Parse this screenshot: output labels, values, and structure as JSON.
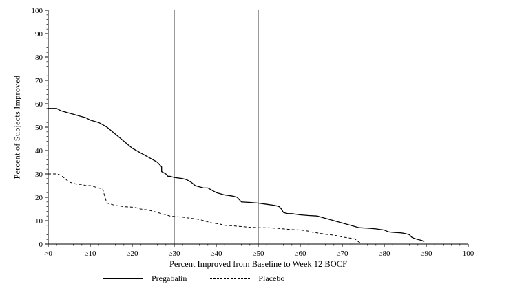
{
  "chart_data": {
    "type": "line",
    "title": "",
    "xlabel": "Percent Improved from Baseline to Week 12 BOCF",
    "ylabel": "Percent of Subjects Improved",
    "xlim": [
      0,
      100
    ],
    "ylim": [
      0,
      100
    ],
    "grid": false,
    "legend_position": "bottom",
    "reference_lines_x": [
      30,
      50
    ],
    "x_ticks": [
      {
        "value": 0,
        "label": ">0"
      },
      {
        "value": 10,
        "label": "≥10"
      },
      {
        "value": 20,
        "label": "≥20"
      },
      {
        "value": 30,
        "label": "≥30"
      },
      {
        "value": 40,
        "label": "≥40"
      },
      {
        "value": 50,
        "label": "≥50"
      },
      {
        "value": 60,
        "label": "≥60"
      },
      {
        "value": 70,
        "label": "≥70"
      },
      {
        "value": 80,
        "label": "≥80"
      },
      {
        "value": 90,
        "label": "≥90"
      },
      {
        "value": 100,
        "label": "100"
      }
    ],
    "y_ticks": [
      0,
      10,
      20,
      30,
      40,
      50,
      60,
      70,
      80,
      90,
      100
    ],
    "series": [
      {
        "name": "Pregabalin",
        "style": "solid",
        "color": "#000000",
        "points": [
          [
            0,
            58
          ],
          [
            2,
            58
          ],
          [
            3,
            57
          ],
          [
            4,
            56.5
          ],
          [
            5,
            56
          ],
          [
            6,
            55.5
          ],
          [
            7,
            55
          ],
          [
            8,
            54.5
          ],
          [
            9,
            54
          ],
          [
            10,
            53
          ],
          [
            11,
            52.5
          ],
          [
            12,
            52
          ],
          [
            13,
            51
          ],
          [
            14,
            50
          ],
          [
            15,
            48.5
          ],
          [
            16,
            47
          ],
          [
            17,
            45.5
          ],
          [
            18,
            44
          ],
          [
            19,
            42.5
          ],
          [
            20,
            41
          ],
          [
            21,
            40
          ],
          [
            22,
            39
          ],
          [
            23,
            38
          ],
          [
            24,
            37
          ],
          [
            25,
            36
          ],
          [
            26,
            35
          ],
          [
            26.5,
            34
          ],
          [
            27,
            33
          ],
          [
            27,
            31
          ],
          [
            28,
            30
          ],
          [
            28.5,
            29
          ],
          [
            29,
            29
          ],
          [
            30,
            28.5
          ],
          [
            32,
            28
          ],
          [
            33,
            27.5
          ],
          [
            34,
            26.5
          ],
          [
            35,
            25
          ],
          [
            36,
            24.5
          ],
          [
            37,
            24
          ],
          [
            38,
            24
          ],
          [
            39,
            23
          ],
          [
            40,
            22
          ],
          [
            41,
            21.5
          ],
          [
            42,
            21
          ],
          [
            43,
            20.8
          ],
          [
            44,
            20.5
          ],
          [
            45,
            20
          ],
          [
            45.5,
            19
          ],
          [
            46,
            18
          ],
          [
            48,
            17.8
          ],
          [
            50,
            17.5
          ],
          [
            52,
            17
          ],
          [
            54,
            16.5
          ],
          [
            55,
            16
          ],
          [
            55.5,
            15
          ],
          [
            56,
            13.5
          ],
          [
            57,
            13
          ],
          [
            58,
            13
          ],
          [
            60,
            12.5
          ],
          [
            62,
            12.2
          ],
          [
            64,
            12
          ],
          [
            65,
            11.5
          ],
          [
            66,
            11
          ],
          [
            67,
            10.5
          ],
          [
            68,
            10
          ],
          [
            70,
            9
          ],
          [
            72,
            8
          ],
          [
            73,
            7.5
          ],
          [
            74,
            7
          ],
          [
            76,
            6.8
          ],
          [
            78,
            6.5
          ],
          [
            80,
            6
          ],
          [
            81,
            5.2
          ],
          [
            82,
            5
          ],
          [
            84,
            4.8
          ],
          [
            85,
            4.5
          ],
          [
            86,
            4
          ],
          [
            86.5,
            3
          ],
          [
            87,
            2.5
          ],
          [
            88,
            2
          ],
          [
            89,
            1.5
          ],
          [
            89.5,
            1
          ]
        ]
      },
      {
        "name": "Placebo",
        "style": "dashed",
        "color": "#000000",
        "points": [
          [
            0,
            30
          ],
          [
            2,
            30
          ],
          [
            3,
            29.5
          ],
          [
            4,
            28
          ],
          [
            5,
            26.5
          ],
          [
            6,
            26
          ],
          [
            7,
            25.5
          ],
          [
            8,
            25.5
          ],
          [
            9,
            25
          ],
          [
            10,
            25
          ],
          [
            11,
            24.5
          ],
          [
            12,
            24
          ],
          [
            13,
            23.5
          ],
          [
            13.5,
            20
          ],
          [
            14,
            17.5
          ],
          [
            15,
            17
          ],
          [
            16,
            16.5
          ],
          [
            18,
            16
          ],
          [
            20,
            15.8
          ],
          [
            21,
            15.5
          ],
          [
            22,
            15
          ],
          [
            24,
            14.5
          ],
          [
            25,
            14
          ],
          [
            26,
            13.5
          ],
          [
            27,
            13
          ],
          [
            28,
            12.5
          ],
          [
            29,
            12
          ],
          [
            30,
            11.8
          ],
          [
            32,
            11.5
          ],
          [
            34,
            11
          ],
          [
            35,
            10.8
          ],
          [
            36,
            10.5
          ],
          [
            37,
            10
          ],
          [
            38,
            9.5
          ],
          [
            39,
            9
          ],
          [
            40,
            8.8
          ],
          [
            41,
            8.5
          ],
          [
            42,
            8
          ],
          [
            44,
            7.8
          ],
          [
            46,
            7.5
          ],
          [
            48,
            7.2
          ],
          [
            50,
            7
          ],
          [
            52,
            7
          ],
          [
            54,
            6.8
          ],
          [
            56,
            6.5
          ],
          [
            58,
            6.2
          ],
          [
            60,
            6
          ],
          [
            61,
            5.8
          ],
          [
            62,
            5.5
          ],
          [
            63,
            5
          ],
          [
            64,
            4.8
          ],
          [
            65,
            4.5
          ],
          [
            66,
            4.2
          ],
          [
            67,
            4
          ],
          [
            68,
            3.8
          ],
          [
            69,
            3.5
          ],
          [
            70,
            3
          ],
          [
            71,
            2.8
          ],
          [
            72,
            2.5
          ],
          [
            73,
            2.2
          ],
          [
            73.5,
            1.5
          ],
          [
            74,
            0.8
          ],
          [
            74.5,
            0.5
          ]
        ]
      }
    ]
  },
  "colors": {
    "line": "#000000",
    "background": "#ffffff"
  }
}
